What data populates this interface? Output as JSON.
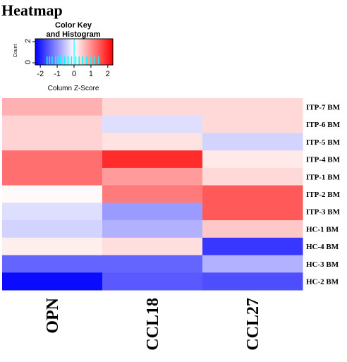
{
  "chart_data": {
    "type": "heatmap",
    "title": "Heatmap",
    "color_key": {
      "title_line1": "Color Key",
      "title_line2": "and Histogram",
      "xlabel": "Column Z-Score",
      "ylabel": "Count",
      "x_ticks": [
        "-2",
        "-1",
        "0",
        "1",
        "2"
      ],
      "y_ticks": [
        "0",
        "2"
      ],
      "range": [
        -2.3,
        2.3
      ],
      "low_color": "#0000ff",
      "mid_color": "#ffffff",
      "high_color": "#ff0000",
      "histogram_color": "#00ffff"
    },
    "rows": [
      "ITP-7 BM",
      "ITP-6 BM",
      "ITP-5 BM",
      "ITP-4 BM",
      "ITP-1 BM",
      "ITP-2 BM",
      "ITP-3 BM",
      "HC-1 BM",
      "HC-4 BM",
      "HC-3 BM",
      "HC-2 BM"
    ],
    "columns": [
      "OPN",
      "CCL18",
      "CCL27"
    ],
    "values": [
      [
        0.7,
        0.35,
        0.35
      ],
      [
        0.4,
        -0.3,
        0.35
      ],
      [
        0.4,
        0.25,
        -0.4
      ],
      [
        1.3,
        1.9,
        0.2
      ],
      [
        1.3,
        0.9,
        0.35
      ],
      [
        0.05,
        1.2,
        1.5
      ],
      [
        -0.3,
        -0.9,
        1.5
      ],
      [
        -0.4,
        -0.7,
        0.5
      ],
      [
        0.15,
        0.3,
        -1.8
      ],
      [
        -1.4,
        -1.4,
        -0.7
      ],
      [
        -2.2,
        -1.5,
        -1.6
      ]
    ]
  }
}
